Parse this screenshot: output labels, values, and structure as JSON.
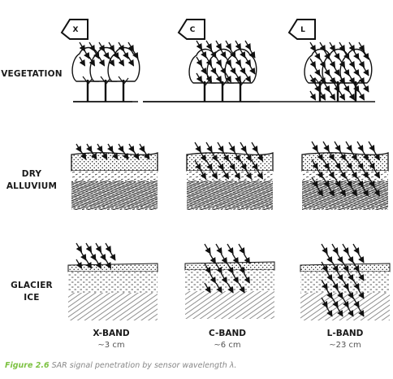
{
  "rows": [
    {
      "label_lines": [
        "VEGETATION"
      ]
    },
    {
      "label_lines": [
        "DRY",
        "ALLUVIUM"
      ]
    },
    {
      "label_lines": [
        "GLACIER",
        "ICE"
      ]
    }
  ],
  "bands": [
    {
      "letter": "X",
      "name": "X-BAND",
      "wavelength": "~3 cm"
    },
    {
      "letter": "C",
      "name": "C-BAND",
      "wavelength": "~6 cm"
    },
    {
      "letter": "L",
      "name": "L-BAND",
      "wavelength": "~23 cm"
    }
  ],
  "caption": {
    "figure_number": "Figure 2.6",
    "text": " SAR signal penetration by sensor wavelength λ."
  },
  "colors": {
    "figure_number": "#7dc242",
    "caption_text": "#888888",
    "ink": "#111111"
  }
}
